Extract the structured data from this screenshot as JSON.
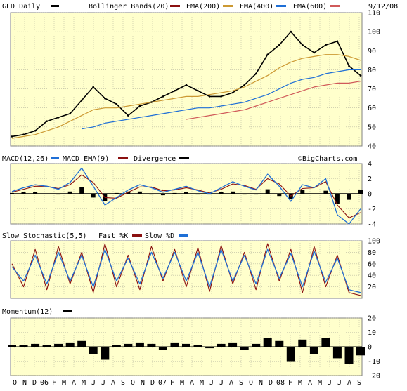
{
  "chart_data": [
    {
      "type": "line",
      "title": "GLD Daily",
      "date": "9/12/08",
      "legend": [
        {
          "name": "Bollinger Bands(20)",
          "color": "#8b1010"
        },
        {
          "name": "EMA(200)",
          "color": "#cc9933"
        },
        {
          "name": "EMA(400)",
          "color": "#1f6fd6"
        },
        {
          "name": "EMA(600)",
          "color": "#d05a5a"
        }
      ],
      "price_color": "#000000",
      "ylim": [
        40,
        110
      ],
      "yticks": [
        40,
        50,
        60,
        70,
        80,
        90,
        100,
        110
      ],
      "watermark": "©BigCharts.com",
      "series": [
        {
          "name": "GLD Daily",
          "values": [
            45,
            46,
            48,
            53,
            55,
            57,
            64,
            71,
            65,
            62,
            56,
            61,
            63,
            66,
            69,
            72,
            69,
            66,
            66,
            68,
            72,
            78,
            88,
            93,
            100,
            93,
            89,
            93,
            95,
            82,
            77
          ]
        },
        {
          "name": "EMA(200)",
          "values": [
            44,
            45,
            46,
            48,
            50,
            53,
            56,
            59,
            60,
            60,
            61,
            62,
            63,
            64,
            65,
            66,
            66,
            67,
            68,
            69,
            71,
            74,
            77,
            81,
            84,
            86,
            87,
            88,
            88,
            87,
            85
          ]
        },
        {
          "name": "EMA(400)",
          "start_index": 6,
          "values": [
            49,
            50,
            52,
            53,
            54,
            55,
            56,
            57,
            58,
            59,
            60,
            60,
            61,
            62,
            63,
            65,
            67,
            70,
            73,
            75,
            76,
            78,
            79,
            80,
            80
          ]
        },
        {
          "name": "EMA(600)",
          "start_index": 15,
          "values": [
            54,
            55,
            56,
            57,
            58,
            59,
            61,
            63,
            65,
            67,
            69,
            71,
            72,
            73,
            73,
            74
          ]
        }
      ]
    },
    {
      "type": "line",
      "title": "MACD(12,26)",
      "legend": [
        {
          "name": "MACD EMA(9)",
          "color": "#1f6fd6"
        },
        {
          "name": "Divergence",
          "color": "#8b1010"
        }
      ],
      "ylim": [
        -4,
        4
      ],
      "yticks": [
        -4,
        -2,
        0,
        2,
        4
      ],
      "series": [
        {
          "name": "MACD(12,26)",
          "values": [
            0.3,
            0.8,
            1.2,
            1.0,
            0.6,
            1.5,
            3.4,
            1.0,
            -1.5,
            -0.5,
            0.5,
            1.2,
            0.8,
            0.2,
            0.6,
            1.0,
            0.4,
            0.0,
            0.8,
            1.6,
            1.0,
            0.5,
            2.6,
            1.0,
            -1.0,
            1.2,
            0.8,
            2.0,
            -2.8,
            -4.0,
            -2.0
          ]
        },
        {
          "name": "MACD EMA(9)",
          "values": [
            0.2,
            0.6,
            1.0,
            1.0,
            0.7,
            1.2,
            2.5,
            1.5,
            -0.5,
            -0.6,
            0.2,
            0.9,
            0.9,
            0.4,
            0.5,
            0.8,
            0.5,
            0.1,
            0.6,
            1.3,
            1.1,
            0.6,
            2.0,
            1.3,
            -0.3,
            0.7,
            0.8,
            1.6,
            -1.5,
            -3.2,
            -2.5
          ]
        },
        {
          "name": "Divergence",
          "values": [
            0.1,
            0.2,
            0.2,
            0.0,
            -0.1,
            0.3,
            0.9,
            -0.5,
            -1.0,
            0.1,
            0.3,
            0.3,
            -0.1,
            -0.2,
            0.1,
            0.2,
            -0.1,
            -0.1,
            0.2,
            0.3,
            -0.1,
            -0.1,
            0.6,
            -0.3,
            -0.7,
            0.5,
            0.0,
            0.4,
            -1.3,
            -0.8,
            0.5
          ]
        }
      ]
    },
    {
      "type": "line",
      "title": "Slow Stochastic(5,5)",
      "legend": [
        {
          "name": "Fast %K",
          "color": "#8b1010"
        },
        {
          "name": "Slow %D",
          "color": "#1f6fd6"
        }
      ],
      "ylim": [
        0,
        100
      ],
      "yticks": [
        20,
        40,
        60,
        80,
        100
      ],
      "series": [
        {
          "name": "Fast %K",
          "values": [
            60,
            20,
            85,
            15,
            90,
            25,
            80,
            10,
            95,
            20,
            75,
            15,
            90,
            30,
            85,
            20,
            88,
            12,
            92,
            25,
            80,
            15,
            95,
            30,
            85,
            10,
            90,
            20,
            75,
            10,
            5
          ]
        },
        {
          "name": "Slow %D",
          "values": [
            55,
            30,
            75,
            25,
            80,
            30,
            75,
            20,
            85,
            30,
            70,
            25,
            80,
            35,
            80,
            30,
            80,
            20,
            85,
            30,
            75,
            25,
            85,
            35,
            78,
            20,
            82,
            28,
            70,
            15,
            10
          ]
        }
      ]
    },
    {
      "type": "bar",
      "title": "Momentum(12)",
      "ylim": [
        -20,
        20
      ],
      "yticks": [
        -20,
        -10,
        0,
        10,
        20
      ],
      "series": [
        {
          "name": "Momentum(12)",
          "values": [
            1,
            1,
            2,
            1,
            2,
            3,
            4,
            -5,
            -9,
            1,
            2,
            3,
            2,
            -2,
            3,
            2,
            1,
            -1,
            2,
            3,
            -2,
            2,
            6,
            4,
            -10,
            5,
            -5,
            6,
            -8,
            -12,
            -6
          ]
        }
      ]
    }
  ],
  "x_axis": {
    "labels": [
      "O",
      "N",
      "D",
      "06",
      "F",
      "M",
      "A",
      "M",
      "J",
      "J",
      "A",
      "S",
      "O",
      "N",
      "D",
      "07",
      "F",
      "M",
      "A",
      "M",
      "J",
      "J",
      "A",
      "S",
      "O",
      "N",
      "D",
      "08",
      "F",
      "M",
      "A",
      "M",
      "J",
      "J",
      "A",
      "S"
    ]
  },
  "colors": {
    "panel_background": "#ffffcc",
    "grid": "#b8b8a0",
    "price": "#000000",
    "bollinger": "#8b1010",
    "ema200": "#cc9933",
    "ema400": "#1f6fd6",
    "ema600": "#d05a5a",
    "macd": "#1f6fd6",
    "divergence": "#000000",
    "stoch_k": "#8b1010",
    "stoch_d": "#1f6fd6",
    "momentum": "#000000"
  }
}
